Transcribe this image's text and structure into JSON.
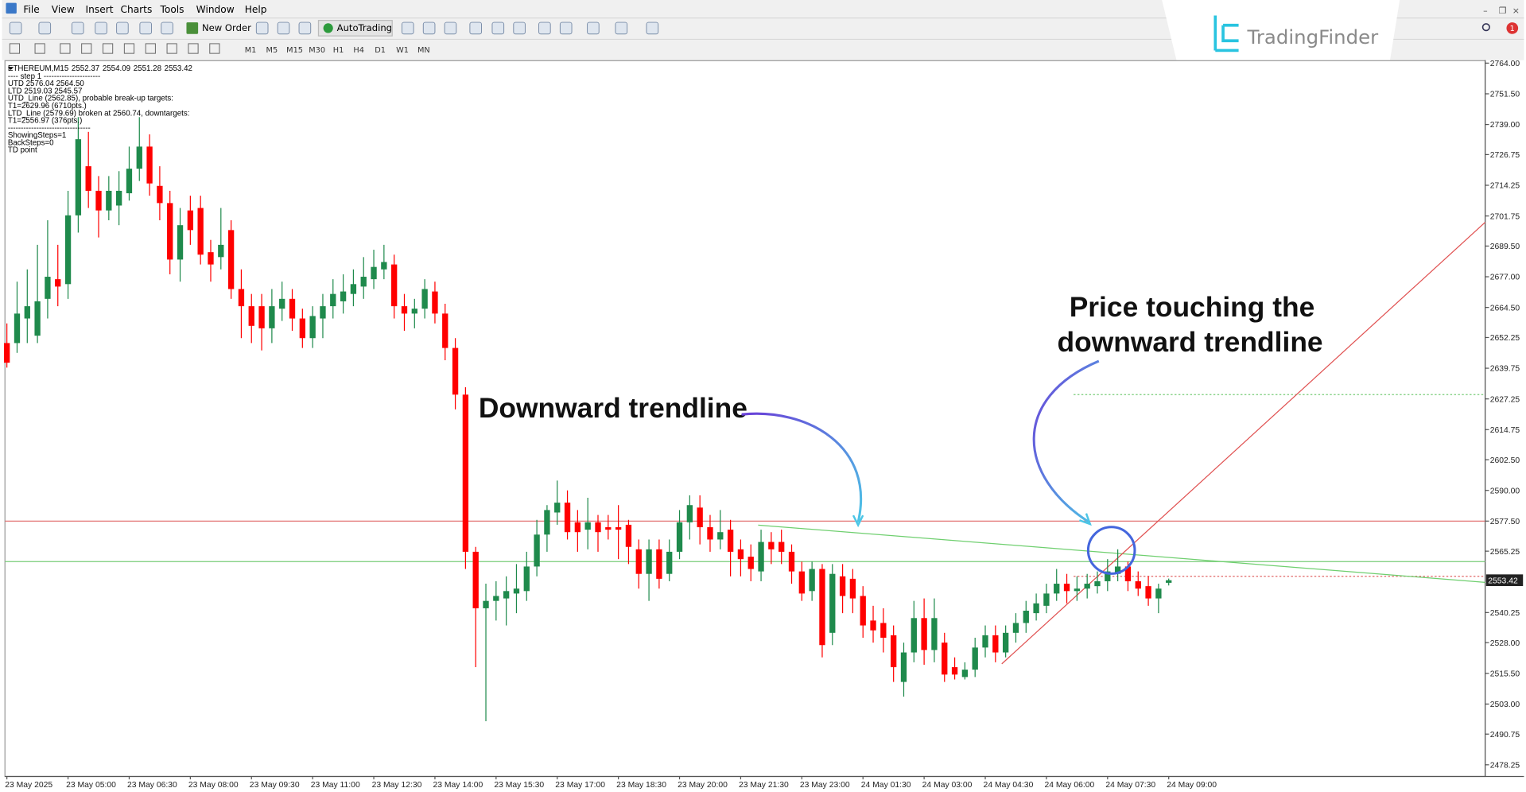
{
  "window": {
    "menu": [
      "File",
      "View",
      "Insert",
      "Charts",
      "Tools",
      "Window",
      "Help"
    ],
    "toolbar": {
      "new_order": "New Order",
      "auto_trading": "AutoTrading",
      "timeframes": [
        "M1",
        "M5",
        "M15",
        "M30",
        "H1",
        "H4",
        "D1",
        "W1",
        "MN"
      ]
    },
    "notification_count": "1",
    "logo": "TradingFinder"
  },
  "info_panel": {
    "symbol": "ETHEREUM,M15",
    "lines": [
      "---- step 1 ----------------------",
      "UTD 2576.04  2564.50",
      "LTD  2519.03  2545.57",
      "UTD_Line (2562.85), probable break-up targets:",
      "T1=2629.96 (6710pts.)",
      "LTD_Line (2579.69) broken at 2560.74, downtargets:",
      "T1=2556.97 (376pts.)",
      "--------------------------------",
      "ShowingSteps=1",
      "BackSteps=0",
      "TD point"
    ]
  },
  "annotations": {
    "left": "Downward trendline",
    "right": [
      "Price touching the",
      "downward trendline"
    ]
  },
  "chart_data": {
    "type": "candlestick",
    "up_color": "#1f8a4c",
    "down_color": "#ff0000",
    "ylim": [
      2473.5,
      2764.8
    ],
    "yticks": [
      {
        "value": 2764,
        "label": "2764.00"
      },
      {
        "value": 2751.5,
        "label": "2751.50"
      },
      {
        "value": 2739,
        "label": "2739.00"
      },
      {
        "value": 2726.75,
        "label": "2726.75"
      },
      {
        "value": 2714.25,
        "label": "2714.25"
      },
      {
        "value": 2701.75,
        "label": "2701.75"
      },
      {
        "value": 2689.5,
        "label": "2689.50"
      },
      {
        "value": 2677,
        "label": "2677.00"
      },
      {
        "value": 2664.5,
        "label": "2664.50"
      },
      {
        "value": 2652.25,
        "label": "2652.25"
      },
      {
        "value": 2639.75,
        "label": "2639.75"
      },
      {
        "value": 2627.25,
        "label": "2627.25"
      },
      {
        "value": 2614.75,
        "label": "2614.75"
      },
      {
        "value": 2602.5,
        "label": "2602.50"
      },
      {
        "value": 2590,
        "label": "2590.00"
      },
      {
        "value": 2577.5,
        "label": "2577.50"
      },
      {
        "value": 2565.25,
        "label": "2565.25"
      },
      {
        "value": 2540.25,
        "label": "2540.25"
      },
      {
        "value": 2528,
        "label": "2528.00"
      },
      {
        "value": 2515.5,
        "label": "2515.50"
      },
      {
        "value": 2503,
        "label": "2503.00"
      },
      {
        "value": 2490.75,
        "label": "2490.75"
      },
      {
        "value": 2478.25,
        "label": "2478.25"
      }
    ],
    "levels": [
      {
        "price": 2577.5,
        "color": "#e06666",
        "style": "solid"
      },
      {
        "price": 2561,
        "color": "#77cc77",
        "style": "solid"
      },
      {
        "price": 2629,
        "color": "#77cc77",
        "style": "dotted"
      },
      {
        "price": 2555,
        "color": "#e06666",
        "style": "dotted"
      }
    ],
    "categories": [
      "23 May 2025",
      null,
      null,
      null,
      null,
      null,
      "23 May 05:00",
      null,
      null,
      null,
      null,
      null,
      "23 May 06:30",
      null,
      null,
      null,
      null,
      null,
      "23 May 08:00",
      null,
      null,
      null,
      null,
      null,
      "23 May 09:30",
      null,
      null,
      null,
      null,
      null,
      "23 May 11:00",
      null,
      null,
      null,
      null,
      null,
      "23 May 12:30",
      null,
      null,
      null,
      null,
      null,
      "23 May 14:00",
      null,
      null,
      null,
      null,
      null,
      "23 May 15:30",
      null,
      null,
      null,
      null,
      null,
      "23 May 17:00",
      null,
      null,
      null,
      null,
      null,
      "23 May 18:30",
      null,
      null,
      null,
      null,
      null,
      "23 May 20:00",
      null,
      null,
      null,
      null,
      null,
      "23 May 21:30",
      null,
      null,
      null,
      null,
      null,
      "23 May 23:00",
      null,
      null,
      null,
      null,
      null,
      "24 May 01:30",
      null,
      null,
      null,
      null,
      null,
      "24 May 03:00",
      null,
      null,
      null,
      null,
      null,
      "24 May 04:30",
      null,
      null,
      null,
      null,
      null,
      "24 May 06:00",
      null,
      null,
      null,
      null,
      null,
      "24 May 07:30",
      null,
      null,
      null,
      null,
      null,
      "24 May 09:00"
    ],
    "candles": [
      [
        2650,
        2658,
        2640,
        2642
      ],
      [
        2650,
        2675,
        2646,
        2662
      ],
      [
        2660,
        2680,
        2650,
        2665
      ],
      [
        2653,
        2690,
        2650,
        2667
      ],
      [
        2668,
        2700,
        2660,
        2677
      ],
      [
        2676,
        2690,
        2665,
        2673
      ],
      [
        2674,
        2712,
        2668,
        2702
      ],
      [
        2702,
        2742,
        2695,
        2733
      ],
      [
        2722,
        2736,
        2705,
        2712
      ],
      [
        2712,
        2718,
        2693,
        2704
      ],
      [
        2704,
        2718,
        2700,
        2712
      ],
      [
        2706,
        2720,
        2698,
        2712
      ],
      [
        2711,
        2730,
        2708,
        2721
      ],
      [
        2721,
        2742,
        2716,
        2730
      ],
      [
        2730,
        2735,
        2710,
        2715
      ],
      [
        2714,
        2722,
        2700,
        2707
      ],
      [
        2707,
        2712,
        2678,
        2684
      ],
      [
        2684,
        2705,
        2675,
        2698
      ],
      [
        2704,
        2710,
        2690,
        2696
      ],
      [
        2705,
        2710,
        2682,
        2686
      ],
      [
        2687,
        2692,
        2675,
        2682
      ],
      [
        2685,
        2705,
        2680,
        2690
      ],
      [
        2696,
        2700,
        2668,
        2672
      ],
      [
        2672,
        2680,
        2652,
        2665
      ],
      [
        2665,
        2670,
        2650,
        2657
      ],
      [
        2665,
        2670,
        2647,
        2656
      ],
      [
        2656,
        2672,
        2650,
        2665
      ],
      [
        2664,
        2675,
        2659,
        2668
      ],
      [
        2668,
        2672,
        2655,
        2660
      ],
      [
        2660,
        2664,
        2648,
        2652
      ],
      [
        2652,
        2665,
        2648,
        2661
      ],
      [
        2660,
        2670,
        2652,
        2665
      ],
      [
        2665,
        2676,
        2660,
        2670
      ],
      [
        2667,
        2678,
        2662,
        2671
      ],
      [
        2670,
        2680,
        2665,
        2674
      ],
      [
        2673,
        2685,
        2668,
        2677
      ],
      [
        2676,
        2688,
        2672,
        2681
      ],
      [
        2680,
        2690,
        2676,
        2683
      ],
      [
        2682,
        2686,
        2660,
        2665
      ],
      [
        2665,
        2670,
        2655,
        2662
      ],
      [
        2662,
        2668,
        2656,
        2664
      ],
      [
        2664,
        2676,
        2660,
        2672
      ],
      [
        2671,
        2675,
        2658,
        2662
      ],
      [
        2662,
        2666,
        2643,
        2648
      ],
      [
        2648,
        2652,
        2623,
        2629
      ],
      [
        2629,
        2632,
        2558,
        2565
      ],
      [
        2565,
        2567,
        2518,
        2542
      ],
      [
        2542,
        2552,
        2496,
        2545
      ],
      [
        2545,
        2553,
        2537,
        2547
      ],
      [
        2546,
        2555,
        2535,
        2549
      ],
      [
        2548,
        2560,
        2540,
        2550
      ],
      [
        2549,
        2565,
        2545,
        2559
      ],
      [
        2559,
        2578,
        2555,
        2572
      ],
      [
        2572,
        2584,
        2565,
        2582
      ],
      [
        2581,
        2594,
        2576,
        2585
      ],
      [
        2585,
        2590,
        2570,
        2573
      ],
      [
        2577,
        2582,
        2565,
        2573
      ],
      [
        2574,
        2587,
        2566,
        2577
      ],
      [
        2577,
        2580,
        2565,
        2573
      ],
      [
        2575,
        2580,
        2570,
        2574
      ],
      [
        2575,
        2584,
        2562,
        2574
      ],
      [
        2576,
        2578,
        2560,
        2567
      ],
      [
        2566,
        2570,
        2550,
        2556
      ],
      [
        2556,
        2570,
        2545,
        2566
      ],
      [
        2566,
        2570,
        2550,
        2554
      ],
      [
        2556,
        2570,
        2553,
        2565
      ],
      [
        2565,
        2582,
        2562,
        2577
      ],
      [
        2577,
        2588,
        2570,
        2584
      ],
      [
        2583,
        2588,
        2568,
        2575
      ],
      [
        2575,
        2580,
        2565,
        2570
      ],
      [
        2570,
        2582,
        2566,
        2573
      ],
      [
        2574,
        2578,
        2555,
        2565
      ],
      [
        2566,
        2570,
        2555,
        2562
      ],
      [
        2563,
        2568,
        2553,
        2558
      ],
      [
        2557,
        2574,
        2553,
        2569
      ],
      [
        2569,
        2573,
        2560,
        2566
      ],
      [
        2569,
        2574,
        2560,
        2565
      ],
      [
        2565,
        2568,
        2552,
        2557
      ],
      [
        2557,
        2561,
        2545,
        2548
      ],
      [
        2549,
        2561,
        2545,
        2558
      ],
      [
        2558,
        2560,
        2522,
        2527
      ],
      [
        2532,
        2560,
        2527,
        2556
      ],
      [
        2555,
        2560,
        2540,
        2547
      ],
      [
        2554,
        2558,
        2540,
        2546
      ],
      [
        2547,
        2551,
        2530,
        2535
      ],
      [
        2537,
        2543,
        2528,
        2533
      ],
      [
        2536,
        2542,
        2524,
        2530
      ],
      [
        2531,
        2535,
        2512,
        2518
      ],
      [
        2512,
        2528,
        2506,
        2524
      ],
      [
        2524,
        2545,
        2520,
        2538
      ],
      [
        2538,
        2546,
        2519,
        2525
      ],
      [
        2525,
        2546,
        2520,
        2538
      ],
      [
        2528,
        2532,
        2512,
        2515
      ],
      [
        2518,
        2522,
        2513,
        2515
      ],
      [
        2514,
        2520,
        2513,
        2517
      ],
      [
        2517,
        2530,
        2514,
        2526
      ],
      [
        2526,
        2535,
        2522,
        2531
      ],
      [
        2531,
        2535,
        2520,
        2524
      ],
      [
        2524,
        2535,
        2522,
        2532
      ],
      [
        2532,
        2540,
        2528,
        2536
      ],
      [
        2536,
        2545,
        2532,
        2541
      ],
      [
        2540,
        2548,
        2537,
        2544
      ],
      [
        2543,
        2552,
        2540,
        2548
      ],
      [
        2548,
        2558,
        2545,
        2552
      ],
      [
        2552,
        2556,
        2544,
        2549
      ],
      [
        2549,
        2555,
        2545,
        2550
      ],
      [
        2550,
        2556,
        2546,
        2552
      ],
      [
        2551,
        2557,
        2548,
        2553
      ],
      [
        2553,
        2562,
        2549,
        2557
      ],
      [
        2556,
        2566,
        2553,
        2559
      ],
      [
        2559,
        2561,
        2549,
        2553
      ],
      [
        2553,
        2557,
        2547,
        2550
      ],
      [
        2551,
        2555,
        2543,
        2546
      ],
      [
        2546,
        2552,
        2540,
        2550
      ],
      [
        2552.37,
        2554.09,
        2551.28,
        2553.42
      ]
    ]
  }
}
